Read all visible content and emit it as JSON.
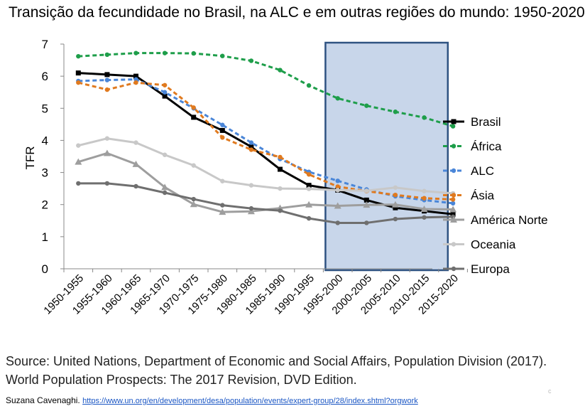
{
  "chart_data": {
    "type": "line",
    "title": "Transição da fecundidade no Brasil, na ALC e em outras regiões do mundo: 1950-2020",
    "xlabel": "",
    "ylabel": "TFR",
    "ylim": [
      0,
      7
    ],
    "yticks": [
      "0",
      "1",
      "2",
      "3",
      "4",
      "5",
      "6",
      "7"
    ],
    "grid": false,
    "legend_position": "right",
    "categories": [
      "1950-1955",
      "1955-1960",
      "1960-1965",
      "1965-1970",
      "1970-1975",
      "1975-1980",
      "1980-1985",
      "1985-1990",
      "1990-1995",
      "1995-2000",
      "2000-2005",
      "2005-2010",
      "2010-2015",
      "2015-2020"
    ],
    "highlight": {
      "from": "1995-2000",
      "to": "2015-2020",
      "fill": "#c8d6ea",
      "stroke": "#2f5382"
    },
    "series": [
      {
        "name": "Brasil",
        "color": "#000000",
        "dash": "solid",
        "marker": "square",
        "values": [
          6.1,
          6.05,
          6.0,
          5.38,
          4.72,
          4.31,
          3.8,
          3.1,
          2.6,
          2.45,
          2.14,
          1.9,
          1.8,
          1.7
        ]
      },
      {
        "name": "África",
        "color": "#1e9e4a",
        "dash": "dashed",
        "marker": "circle",
        "values": [
          6.62,
          6.67,
          6.72,
          6.72,
          6.71,
          6.63,
          6.48,
          6.19,
          5.71,
          5.31,
          5.08,
          4.89,
          4.71,
          4.44
        ]
      },
      {
        "name": "ALC",
        "color": "#4a86d8",
        "dash": "dashed",
        "marker": "circle",
        "values": [
          5.85,
          5.88,
          5.9,
          5.5,
          5.0,
          4.48,
          3.93,
          3.42,
          3.02,
          2.74,
          2.47,
          2.26,
          2.14,
          2.04
        ]
      },
      {
        "name": "Ásia",
        "color": "#e07a1f",
        "dash": "dashed",
        "marker": "circle",
        "values": [
          5.8,
          5.58,
          5.8,
          5.72,
          5.02,
          4.09,
          3.71,
          3.48,
          2.94,
          2.56,
          2.42,
          2.3,
          2.2,
          2.16
        ]
      },
      {
        "name": "América Norte",
        "color": "#9e9e9e",
        "dash": "solid",
        "marker": "triangle",
        "values": [
          3.33,
          3.6,
          3.26,
          2.54,
          2.01,
          1.77,
          1.79,
          1.89,
          2.0,
          1.96,
          1.99,
          2.0,
          1.86,
          1.85
        ]
      },
      {
        "name": "Oceania",
        "color": "#c8c8c8",
        "dash": "solid",
        "marker": "circle",
        "values": [
          3.84,
          4.06,
          3.93,
          3.55,
          3.22,
          2.73,
          2.6,
          2.5,
          2.49,
          2.45,
          2.43,
          2.53,
          2.42,
          2.35
        ]
      },
      {
        "name": "Europa",
        "color": "#6f6f6f",
        "dash": "solid",
        "marker": "circle",
        "values": [
          2.66,
          2.66,
          2.57,
          2.37,
          2.17,
          1.98,
          1.88,
          1.81,
          1.57,
          1.43,
          1.43,
          1.55,
          1.6,
          1.62
        ]
      }
    ]
  },
  "footer": {
    "source": "Source: United Nations, Department of Economic and Social Affairs, Population Division (2017). World Population Prospects: The 2017 Revision, DVD Edition.",
    "author": "Suzana Cavenaghi.",
    "link": "https://www.un.org/en/development/desa/population/events/expert-group/28/index.shtml?orgwork"
  }
}
